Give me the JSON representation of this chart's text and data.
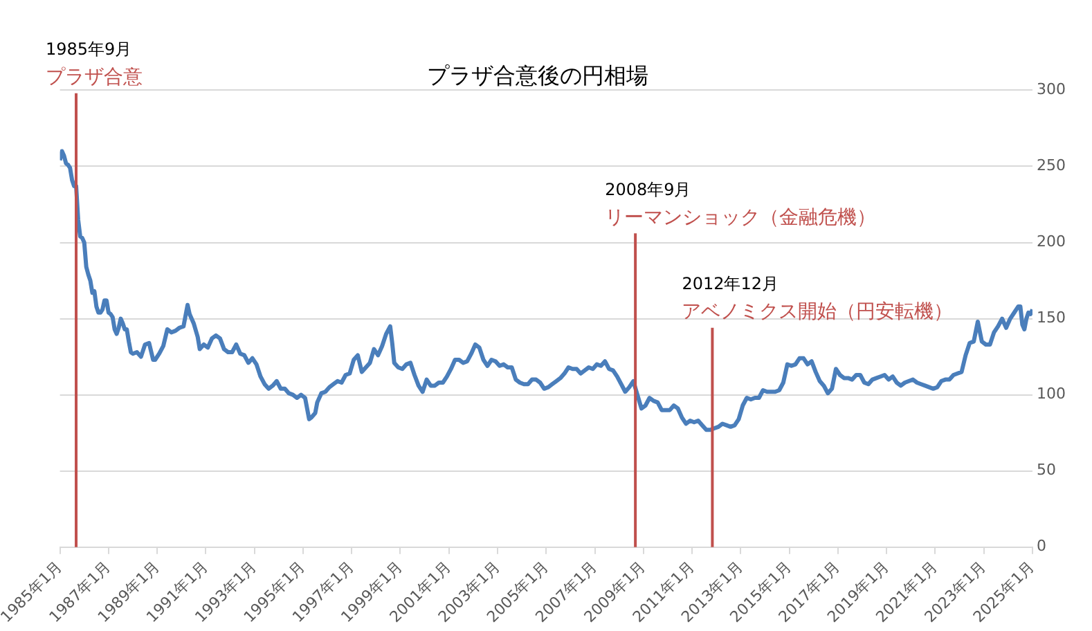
{
  "chart_data": {
    "type": "line",
    "title": "プラザ合意後の円相場",
    "x": [
      "1985-01",
      "1985-02",
      "1985-03",
      "1985-04",
      "1985-05",
      "1985-06",
      "1985-07",
      "1985-08",
      "1985-09",
      "1985-10",
      "1985-11",
      "1985-12",
      "1986-01",
      "1986-02",
      "1986-03",
      "1986-04",
      "1986-05",
      "1986-06",
      "1986-07",
      "1986-08",
      "1986-09",
      "1986-10",
      "1986-11",
      "1986-12",
      "1987-01",
      "1987-02",
      "1987-03",
      "1987-04",
      "1987-05",
      "1987-06",
      "1987-07",
      "1987-08",
      "1987-09",
      "1987-10",
      "1987-11",
      "1987-12",
      "1988-01",
      "1988-03",
      "1988-05",
      "1988-07",
      "1988-09",
      "1988-11",
      "1988-12",
      "1989-02",
      "1989-04",
      "1989-06",
      "1989-08",
      "1989-10",
      "1989-12",
      "1990-02",
      "1990-04",
      "1990-05",
      "1990-07",
      "1990-09",
      "1990-10",
      "1990-12",
      "1991-02",
      "1991-04",
      "1991-06",
      "1991-08",
      "1991-10",
      "1991-12",
      "1992-02",
      "1992-04",
      "1992-06",
      "1992-08",
      "1992-10",
      "1992-12",
      "1993-02",
      "1993-04",
      "1993-06",
      "1993-08",
      "1993-10",
      "1993-12",
      "1994-02",
      "1994-04",
      "1994-06",
      "1994-08",
      "1994-10",
      "1994-12",
      "1995-02",
      "1995-04",
      "1995-05",
      "1995-07",
      "1995-08",
      "1995-10",
      "1995-12",
      "1996-02",
      "1996-04",
      "1996-06",
      "1996-08",
      "1996-10",
      "1996-12",
      "1997-02",
      "1997-04",
      "1997-06",
      "1997-08",
      "1997-10",
      "1997-12",
      "1998-02",
      "1998-04",
      "1998-06",
      "1998-08",
      "1998-09",
      "1998-10",
      "1998-12",
      "1999-02",
      "1999-04",
      "1999-06",
      "1999-08",
      "1999-10",
      "1999-12",
      "2000-02",
      "2000-04",
      "2000-06",
      "2000-08",
      "2000-10",
      "2000-12",
      "2001-02",
      "2001-04",
      "2001-06",
      "2001-08",
      "2001-10",
      "2001-12",
      "2002-02",
      "2002-04",
      "2002-06",
      "2002-08",
      "2002-10",
      "2002-12",
      "2003-02",
      "2003-04",
      "2003-06",
      "2003-08",
      "2003-10",
      "2003-12",
      "2004-02",
      "2004-04",
      "2004-06",
      "2004-08",
      "2004-10",
      "2004-12",
      "2005-02",
      "2005-04",
      "2005-06",
      "2005-08",
      "2005-10",
      "2005-12",
      "2006-02",
      "2006-04",
      "2006-06",
      "2006-08",
      "2006-10",
      "2006-12",
      "2007-02",
      "2007-04",
      "2007-06",
      "2007-08",
      "2007-10",
      "2007-12",
      "2008-02",
      "2008-04",
      "2008-06",
      "2008-08",
      "2008-10",
      "2008-12",
      "2009-02",
      "2009-04",
      "2009-06",
      "2009-08",
      "2009-10",
      "2009-12",
      "2010-02",
      "2010-04",
      "2010-06",
      "2010-08",
      "2010-10",
      "2010-12",
      "2011-02",
      "2011-04",
      "2011-06",
      "2011-08",
      "2011-10",
      "2011-12",
      "2012-02",
      "2012-04",
      "2012-06",
      "2012-08",
      "2012-10",
      "2012-12",
      "2013-02",
      "2013-04",
      "2013-06",
      "2013-08",
      "2013-10",
      "2013-12",
      "2014-02",
      "2014-04",
      "2014-06",
      "2014-08",
      "2014-10",
      "2014-12",
      "2015-02",
      "2015-04",
      "2015-06",
      "2015-08",
      "2015-10",
      "2015-12",
      "2016-02",
      "2016-04",
      "2016-06",
      "2016-08",
      "2016-10",
      "2016-12",
      "2017-02",
      "2017-04",
      "2017-06",
      "2017-08",
      "2017-10",
      "2017-12",
      "2018-02",
      "2018-04",
      "2018-06",
      "2018-08",
      "2018-10",
      "2018-12",
      "2019-02",
      "2019-04",
      "2019-06",
      "2019-08",
      "2019-10",
      "2019-12",
      "2020-02",
      "2020-04",
      "2020-06",
      "2020-08",
      "2020-10",
      "2020-12",
      "2021-02",
      "2021-04",
      "2021-06",
      "2021-08",
      "2021-10",
      "2021-12",
      "2022-02",
      "2022-04",
      "2022-06",
      "2022-08",
      "2022-10",
      "2022-12",
      "2023-02",
      "2023-04",
      "2023-06",
      "2023-08",
      "2023-10",
      "2023-12",
      "2024-02",
      "2024-04",
      "2024-06",
      "2024-07",
      "2024-08",
      "2024-09",
      "2024-10",
      "2024-11",
      "2024-12",
      "2025-01"
    ],
    "series": [
      {
        "color": "#4a7ebb",
        "values": [
          254,
          260,
          257,
          252,
          251,
          249,
          241,
          237,
          237,
          215,
          204,
          203,
          200,
          184,
          179,
          175,
          167,
          168,
          158,
          154,
          154,
          156,
          162,
          162,
          154,
          153,
          151,
          143,
          140,
          144,
          150,
          147,
          143,
          143,
          135,
          128,
          127,
          128,
          125,
          133,
          134,
          123,
          123,
          127,
          132,
          143,
          141,
          142,
          144,
          145,
          159,
          153,
          147,
          138,
          130,
          133,
          131,
          137,
          139,
          137,
          130,
          128,
          128,
          133,
          127,
          126,
          121,
          124,
          120,
          112,
          107,
          104,
          106,
          109,
          104,
          104,
          101,
          100,
          98,
          100,
          98,
          84,
          85,
          88,
          95,
          101,
          102,
          105,
          107,
          109,
          108,
          113,
          114,
          123,
          126,
          115,
          118,
          121,
          130,
          126,
          132,
          140,
          145,
          134,
          121,
          118,
          117,
          120,
          121,
          113,
          106,
          102,
          110,
          106,
          106,
          108,
          108,
          112,
          117,
          123,
          123,
          121,
          122,
          127,
          133,
          131,
          123,
          119,
          123,
          122,
          119,
          120,
          118,
          118,
          110,
          108,
          107,
          107,
          110,
          110,
          108,
          104,
          105,
          107,
          109,
          111,
          114,
          118,
          117,
          117,
          114,
          116,
          118,
          117,
          120,
          119,
          122,
          117,
          116,
          112,
          107,
          102,
          105,
          109,
          100,
          91,
          93,
          98,
          96,
          95,
          90,
          90,
          90,
          93,
          91,
          85,
          81,
          83,
          82,
          83,
          80,
          77,
          77,
          78,
          79,
          81,
          80,
          79,
          80,
          84,
          93,
          98,
          97,
          98,
          98,
          103,
          102,
          102,
          102,
          103,
          108,
          120,
          119,
          120,
          124,
          124,
          120,
          122,
          115,
          109,
          106,
          101,
          104,
          117,
          113,
          111,
          111,
          110,
          113,
          113,
          108,
          107,
          110,
          111,
          112,
          113,
          110,
          112,
          108,
          106,
          108,
          109,
          110,
          108,
          107,
          106,
          105,
          104,
          105,
          109,
          110,
          110,
          113,
          114,
          115,
          126,
          134,
          135,
          148,
          135,
          133,
          133,
          141,
          145,
          150,
          144,
          150,
          154,
          158,
          158,
          146,
          143,
          150,
          154,
          153,
          156
        ]
      }
    ],
    "xlim": [
      "1985-01",
      "2025-01"
    ],
    "xticks": [
      {
        "value": "1985-01",
        "label": "1985年1月"
      },
      {
        "value": "1987-01",
        "label": "1987年1月"
      },
      {
        "value": "1989-01",
        "label": "1989年1月"
      },
      {
        "value": "1991-01",
        "label": "1991年1月"
      },
      {
        "value": "1993-01",
        "label": "1993年1月"
      },
      {
        "value": "1995-01",
        "label": "1995年1月"
      },
      {
        "value": "1997-01",
        "label": "1997年1月"
      },
      {
        "value": "1999-01",
        "label": "1999年1月"
      },
      {
        "value": "2001-01",
        "label": "2001年1月"
      },
      {
        "value": "2003-01",
        "label": "2003年1月"
      },
      {
        "value": "2005-01",
        "label": "2005年1月"
      },
      {
        "value": "2007-01",
        "label": "2007年1月"
      },
      {
        "value": "2009-01",
        "label": "2009年1月"
      },
      {
        "value": "2011-01",
        "label": "2011年1月"
      },
      {
        "value": "2013-01",
        "label": "2013年1月"
      },
      {
        "value": "2015-01",
        "label": "2015年1月"
      },
      {
        "value": "2017-01",
        "label": "2017年1月"
      },
      {
        "value": "2019-01",
        "label": "2019年1月"
      },
      {
        "value": "2021-01",
        "label": "2021年1月"
      },
      {
        "value": "2023-01",
        "label": "2023年1月"
      },
      {
        "value": "2025-01",
        "label": "2025年1月"
      }
    ],
    "ylim": [
      0,
      300
    ],
    "yticks": [
      0,
      50,
      100,
      150,
      200,
      250,
      300
    ],
    "grid": "y",
    "legend": false,
    "marker": "none",
    "line_style": "solid",
    "ref_lines": [
      {
        "axis": "x",
        "value": "1985-09",
        "label": "プラザ合意",
        "color": "#c0504d"
      },
      {
        "axis": "x",
        "value": "2008-09",
        "label": "リーマンショック（金融危機）",
        "color": "#c0504d"
      },
      {
        "axis": "x",
        "value": "2011-11",
        "label": "アベノミクス開始（円安転機）",
        "color": "#c0504d"
      }
    ],
    "annotations": [
      {
        "text": "1985年9月",
        "x": "1985-09",
        "y": 298
      },
      {
        "text": "2008年9月",
        "x": "2008-09",
        "y": 206
      },
      {
        "text": "2012年12月",
        "x": "2011-11",
        "y": 144
      }
    ]
  }
}
